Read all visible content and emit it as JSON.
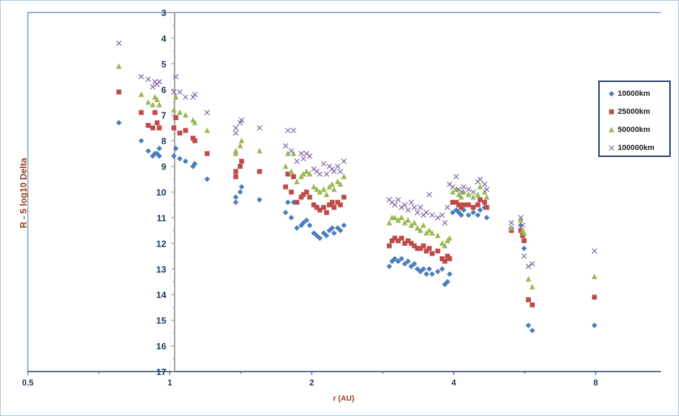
{
  "chart_data": {
    "type": "scatter",
    "title": "",
    "xlabel": "r (AU)",
    "ylabel": "R - 5 log10 Delta",
    "x_scale": "log2",
    "xlim": [
      0.5,
      11
    ],
    "ylim": [
      3,
      17
    ],
    "y_inverted": true,
    "x_ticks": [
      0.5,
      1,
      2,
      4,
      8
    ],
    "x_tick_labels": [
      "0.5",
      "1",
      "2",
      "4",
      "8"
    ],
    "y_ticks": [
      3,
      4,
      5,
      6,
      7,
      8,
      9,
      10,
      11,
      12,
      13,
      14,
      15,
      16,
      17
    ],
    "y_tick_labels": [
      "3",
      "4",
      "5",
      "6",
      "7",
      "8",
      "9",
      "10",
      "11",
      "12",
      "13",
      "14",
      "15",
      "16",
      "17"
    ],
    "grid": false,
    "legend_position": "right",
    "series": [
      {
        "name": "10000km",
        "marker": "diamond",
        "color": "#4a7ebb",
        "points": [
          [
            0.78,
            7.3
          ],
          [
            0.87,
            8.0
          ],
          [
            0.9,
            8.4
          ],
          [
            0.92,
            8.6
          ],
          [
            0.93,
            8.5
          ],
          [
            0.94,
            8.5
          ],
          [
            0.95,
            8.6
          ],
          [
            0.95,
            8.3
          ],
          [
            1.02,
            8.6
          ],
          [
            1.03,
            8.3
          ],
          [
            1.05,
            8.7
          ],
          [
            1.08,
            8.8
          ],
          [
            1.12,
            9.0
          ],
          [
            1.13,
            8.9
          ],
          [
            1.2,
            9.5
          ],
          [
            1.38,
            10.2
          ],
          [
            1.38,
            10.4
          ],
          [
            1.41,
            10.0
          ],
          [
            1.42,
            9.8
          ],
          [
            1.55,
            10.3
          ],
          [
            1.76,
            10.8
          ],
          [
            1.78,
            10.4
          ],
          [
            1.81,
            11.0
          ],
          [
            1.83,
            10.4
          ],
          [
            1.86,
            11.4
          ],
          [
            1.9,
            11.3
          ],
          [
            1.92,
            11.2
          ],
          [
            1.95,
            11.1
          ],
          [
            1.98,
            11.3
          ],
          [
            2.02,
            11.6
          ],
          [
            2.05,
            11.7
          ],
          [
            2.08,
            11.8
          ],
          [
            2.12,
            11.6
          ],
          [
            2.15,
            11.7
          ],
          [
            2.18,
            11.5
          ],
          [
            2.21,
            11.4
          ],
          [
            2.23,
            11.6
          ],
          [
            2.27,
            11.4
          ],
          [
            2.3,
            11.5
          ],
          [
            2.34,
            11.3
          ],
          [
            2.92,
            12.9
          ],
          [
            2.96,
            12.7
          ],
          [
            3.0,
            12.6
          ],
          [
            3.05,
            12.7
          ],
          [
            3.1,
            12.6
          ],
          [
            3.15,
            12.8
          ],
          [
            3.2,
            12.7
          ],
          [
            3.25,
            12.9
          ],
          [
            3.3,
            12.8
          ],
          [
            3.35,
            13.0
          ],
          [
            3.4,
            13.1
          ],
          [
            3.45,
            13.0
          ],
          [
            3.5,
            13.2
          ],
          [
            3.55,
            13.0
          ],
          [
            3.6,
            13.2
          ],
          [
            3.7,
            13.1
          ],
          [
            3.78,
            13.0
          ],
          [
            3.83,
            13.6
          ],
          [
            3.88,
            13.5
          ],
          [
            3.92,
            13.2
          ],
          [
            3.98,
            10.8
          ],
          [
            4.05,
            10.7
          ],
          [
            4.1,
            10.8
          ],
          [
            4.15,
            10.9
          ],
          [
            4.2,
            10.7
          ],
          [
            4.3,
            10.9
          ],
          [
            4.4,
            10.8
          ],
          [
            4.5,
            10.9
          ],
          [
            4.55,
            10.7
          ],
          [
            4.65,
            10.6
          ],
          [
            4.7,
            11.0
          ],
          [
            5.3,
            11.4
          ],
          [
            5.55,
            11.3
          ],
          [
            5.6,
            11.6
          ],
          [
            5.64,
            12.2
          ],
          [
            5.76,
            15.2
          ],
          [
            5.87,
            15.4
          ],
          [
            7.95,
            15.2
          ]
        ]
      },
      {
        "name": "25000km",
        "marker": "square",
        "color": "#be4b48",
        "points": [
          [
            0.78,
            6.1
          ],
          [
            0.87,
            6.9
          ],
          [
            0.9,
            7.4
          ],
          [
            0.92,
            7.5
          ],
          [
            0.93,
            6.9
          ],
          [
            0.94,
            7.3
          ],
          [
            0.95,
            7.5
          ],
          [
            1.02,
            7.5
          ],
          [
            1.03,
            7.1
          ],
          [
            1.05,
            7.7
          ],
          [
            1.08,
            7.6
          ],
          [
            1.12,
            7.9
          ],
          [
            1.13,
            8.0
          ],
          [
            1.2,
            8.5
          ],
          [
            1.38,
            9.2
          ],
          [
            1.38,
            9.4
          ],
          [
            1.41,
            9.0
          ],
          [
            1.42,
            8.8
          ],
          [
            1.55,
            9.2
          ],
          [
            1.76,
            9.8
          ],
          [
            1.78,
            9.3
          ],
          [
            1.81,
            10.0
          ],
          [
            1.83,
            9.4
          ],
          [
            1.86,
            10.4
          ],
          [
            1.9,
            10.2
          ],
          [
            1.92,
            10.1
          ],
          [
            1.95,
            10.0
          ],
          [
            1.98,
            10.2
          ],
          [
            2.02,
            10.5
          ],
          [
            2.05,
            10.6
          ],
          [
            2.08,
            10.7
          ],
          [
            2.12,
            10.6
          ],
          [
            2.15,
            10.8
          ],
          [
            2.18,
            10.5
          ],
          [
            2.21,
            10.4
          ],
          [
            2.23,
            10.6
          ],
          [
            2.27,
            10.4
          ],
          [
            2.3,
            10.5
          ],
          [
            2.34,
            10.2
          ],
          [
            2.92,
            12.1
          ],
          [
            2.96,
            11.9
          ],
          [
            3.0,
            11.8
          ],
          [
            3.05,
            11.9
          ],
          [
            3.1,
            11.8
          ],
          [
            3.15,
            12.0
          ],
          [
            3.2,
            11.9
          ],
          [
            3.25,
            12.0
          ],
          [
            3.3,
            12.1
          ],
          [
            3.35,
            12.2
          ],
          [
            3.4,
            12.2
          ],
          [
            3.45,
            12.1
          ],
          [
            3.5,
            12.3
          ],
          [
            3.55,
            12.2
          ],
          [
            3.6,
            12.4
          ],
          [
            3.7,
            12.3
          ],
          [
            3.78,
            12.6
          ],
          [
            3.83,
            12.7
          ],
          [
            3.88,
            12.5
          ],
          [
            3.92,
            12.6
          ],
          [
            3.98,
            10.4
          ],
          [
            4.05,
            10.4
          ],
          [
            4.1,
            10.5
          ],
          [
            4.15,
            10.6
          ],
          [
            4.2,
            10.5
          ],
          [
            4.3,
            10.5
          ],
          [
            4.4,
            10.6
          ],
          [
            4.5,
            10.5
          ],
          [
            4.55,
            10.3
          ],
          [
            4.65,
            10.4
          ],
          [
            4.7,
            10.6
          ],
          [
            5.3,
            11.5
          ],
          [
            5.55,
            11.5
          ],
          [
            5.6,
            11.7
          ],
          [
            5.64,
            11.9
          ],
          [
            5.76,
            14.2
          ],
          [
            5.87,
            14.4
          ],
          [
            7.95,
            14.1
          ]
        ]
      },
      {
        "name": "50000km",
        "marker": "triangle",
        "color": "#98b954",
        "points": [
          [
            0.78,
            5.1
          ],
          [
            0.87,
            6.2
          ],
          [
            0.9,
            6.5
          ],
          [
            0.92,
            6.6
          ],
          [
            0.93,
            6.3
          ],
          [
            0.94,
            6.4
          ],
          [
            0.95,
            6.6
          ],
          [
            1.02,
            6.8
          ],
          [
            1.03,
            6.3
          ],
          [
            1.05,
            6.9
          ],
          [
            1.08,
            7.0
          ],
          [
            1.12,
            7.2
          ],
          [
            1.13,
            7.3
          ],
          [
            1.2,
            7.6
          ],
          [
            1.38,
            8.4
          ],
          [
            1.38,
            8.5
          ],
          [
            1.41,
            8.2
          ],
          [
            1.42,
            8.0
          ],
          [
            1.55,
            8.4
          ],
          [
            1.76,
            9.0
          ],
          [
            1.78,
            8.5
          ],
          [
            1.81,
            9.2
          ],
          [
            1.83,
            8.5
          ],
          [
            1.86,
            9.6
          ],
          [
            1.9,
            9.4
          ],
          [
            1.92,
            9.3
          ],
          [
            1.95,
            9.2
          ],
          [
            1.98,
            9.3
          ],
          [
            2.02,
            9.8
          ],
          [
            2.05,
            9.9
          ],
          [
            2.08,
            10.0
          ],
          [
            2.12,
            9.9
          ],
          [
            2.15,
            10.1
          ],
          [
            2.18,
            9.8
          ],
          [
            2.21,
            9.7
          ],
          [
            2.23,
            9.9
          ],
          [
            2.27,
            9.6
          ],
          [
            2.3,
            9.7
          ],
          [
            2.34,
            9.4
          ],
          [
            2.92,
            11.2
          ],
          [
            2.96,
            11.0
          ],
          [
            3.0,
            11.0
          ],
          [
            3.05,
            11.1
          ],
          [
            3.1,
            11.0
          ],
          [
            3.15,
            11.2
          ],
          [
            3.2,
            11.1
          ],
          [
            3.25,
            11.3
          ],
          [
            3.3,
            11.2
          ],
          [
            3.35,
            11.4
          ],
          [
            3.4,
            11.5
          ],
          [
            3.45,
            11.3
          ],
          [
            3.5,
            11.6
          ],
          [
            3.55,
            11.5
          ],
          [
            3.6,
            11.6
          ],
          [
            3.7,
            11.7
          ],
          [
            3.78,
            12.0
          ],
          [
            3.83,
            12.1
          ],
          [
            3.88,
            11.9
          ],
          [
            3.92,
            11.8
          ],
          [
            3.98,
            10.0
          ],
          [
            4.05,
            9.9
          ],
          [
            4.1,
            10.1
          ],
          [
            4.15,
            10.2
          ],
          [
            4.2,
            10.0
          ],
          [
            4.3,
            10.1
          ],
          [
            4.4,
            10.2
          ],
          [
            4.5,
            10.1
          ],
          [
            4.55,
            9.8
          ],
          [
            4.65,
            10.0
          ],
          [
            4.7,
            10.2
          ],
          [
            5.3,
            11.4
          ],
          [
            5.55,
            11.1
          ],
          [
            5.6,
            11.5
          ],
          [
            5.64,
            11.6
          ],
          [
            5.76,
            13.4
          ],
          [
            5.87,
            13.7
          ],
          [
            7.95,
            13.3
          ]
        ]
      },
      {
        "name": "100000km",
        "marker": "x",
        "color": "#7d60a0",
        "points": [
          [
            0.78,
            4.2
          ],
          [
            0.87,
            5.5
          ],
          [
            0.9,
            5.6
          ],
          [
            0.92,
            5.9
          ],
          [
            0.93,
            5.7
          ],
          [
            0.94,
            5.8
          ],
          [
            0.95,
            5.7
          ],
          [
            1.02,
            6.1
          ],
          [
            1.03,
            5.5
          ],
          [
            1.05,
            6.1
          ],
          [
            1.08,
            6.3
          ],
          [
            1.12,
            6.3
          ],
          [
            1.13,
            6.2
          ],
          [
            1.2,
            6.9
          ],
          [
            1.38,
            7.5
          ],
          [
            1.38,
            7.7
          ],
          [
            1.41,
            7.3
          ],
          [
            1.42,
            7.2
          ],
          [
            1.55,
            7.5
          ],
          [
            1.76,
            8.2
          ],
          [
            1.78,
            7.6
          ],
          [
            1.81,
            8.4
          ],
          [
            1.83,
            7.6
          ],
          [
            1.86,
            8.8
          ],
          [
            1.9,
            8.5
          ],
          [
            1.92,
            8.7
          ],
          [
            1.95,
            8.5
          ],
          [
            1.98,
            8.6
          ],
          [
            2.02,
            9.1
          ],
          [
            2.05,
            9.2
          ],
          [
            2.08,
            9.3
          ],
          [
            2.12,
            8.9
          ],
          [
            2.15,
            9.3
          ],
          [
            2.18,
            9.0
          ],
          [
            2.21,
            9.1
          ],
          [
            2.23,
            9.2
          ],
          [
            2.27,
            9.0
          ],
          [
            2.3,
            9.2
          ],
          [
            2.34,
            8.8
          ],
          [
            2.92,
            10.3
          ],
          [
            2.96,
            10.4
          ],
          [
            3.0,
            10.5
          ],
          [
            3.05,
            10.3
          ],
          [
            3.1,
            10.6
          ],
          [
            3.15,
            10.5
          ],
          [
            3.2,
            10.7
          ],
          [
            3.25,
            10.4
          ],
          [
            3.3,
            10.6
          ],
          [
            3.35,
            10.8
          ],
          [
            3.4,
            10.6
          ],
          [
            3.45,
            10.9
          ],
          [
            3.5,
            10.8
          ],
          [
            3.55,
            10.1
          ],
          [
            3.6,
            10.9
          ],
          [
            3.7,
            11.0
          ],
          [
            3.78,
            10.9
          ],
          [
            3.83,
            11.2
          ],
          [
            3.88,
            10.6
          ],
          [
            3.92,
            9.7
          ],
          [
            3.98,
            9.8
          ],
          [
            4.05,
            9.4
          ],
          [
            4.1,
            9.9
          ],
          [
            4.15,
            10.0
          ],
          [
            4.2,
            9.8
          ],
          [
            4.3,
            9.9
          ],
          [
            4.4,
            10.0
          ],
          [
            4.5,
            9.6
          ],
          [
            4.55,
            9.5
          ],
          [
            4.65,
            9.7
          ],
          [
            4.7,
            9.9
          ],
          [
            5.3,
            11.2
          ],
          [
            5.55,
            11.0
          ],
          [
            5.6,
            11.3
          ],
          [
            5.64,
            12.5
          ],
          [
            5.76,
            12.9
          ],
          [
            5.87,
            12.8
          ],
          [
            7.95,
            12.3
          ]
        ]
      }
    ]
  }
}
